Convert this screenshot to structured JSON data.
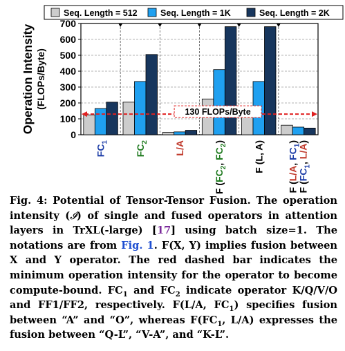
{
  "chart_data": {
    "type": "bar",
    "ylabel_line1": "Operation Intensity",
    "ylabel_line2": "(FLOPs/Byte)",
    "ylim": [
      0,
      700
    ],
    "yticks": [
      "0",
      "100",
      "200",
      "300",
      "400",
      "500",
      "600",
      "700"
    ],
    "grid": true,
    "legend_position": "top",
    "groups": [
      {
        "base": "FC",
        "sub": "1",
        "suffix": "",
        "color": "#1f3fa8"
      },
      {
        "base": "FC",
        "sub": "2",
        "suffix": "",
        "color": "#1f7a1f"
      },
      {
        "base": "L/A",
        "sub": "",
        "suffix": "",
        "color": "#c0392b"
      },
      {
        "base": "F (FC",
        "sub": "2",
        "suffix": ", FC",
        "sub2": "2",
        "tail": ")",
        "color": "#1f7a1f"
      },
      {
        "base": "F (L, A)",
        "sub": "",
        "suffix": "",
        "color": "#000000"
      },
      {
        "line1": "F (L/A, FC",
        "line1_sub": "1",
        "line1_tail": ")",
        "line2": "F (FC",
        "line2_sub": "1",
        "line2_tail": ", L/A)",
        "color": "#c0392b",
        "color2": "#1f3fa8"
      }
    ],
    "series": [
      {
        "name": "Seq. Length = 512",
        "color": "#cccccc",
        "values": [
          125,
          205,
          15,
          225,
          165,
          60
        ]
      },
      {
        "name": "Seq. Length = 1K",
        "color": "#1fa0f0",
        "values": [
          165,
          335,
          18,
          410,
          335,
          48
        ]
      },
      {
        "name": "Seq. Length = 2K",
        "color": "#17365d",
        "values": [
          205,
          505,
          28,
          680,
          680,
          42
        ]
      }
    ],
    "threshold": {
      "value": 130,
      "label": "130 FLOPs/Byte",
      "color": "#e02020"
    }
  },
  "caption": {
    "fig_label": "Fig. 4:",
    "title": "Potential of Tensor-Tensor Fusion.",
    "t1": "The operation intensity (",
    "t2": ") of single and fused operators in attention layers in TrXL(-large) [",
    "ref": "17",
    "t3": "] using batch size=1. The notations are from ",
    "link": "Fig. 1",
    "t4": ". F(X, Y) implies fusion between X and Y operator. The red dashed bar indicates the minimum operation intensity for the operator to become compute-bound. FC",
    "t5": " and FC",
    "t6": " indicate operator K/Q/V/O and FF1/FF2, respectively. F(L/A, FC",
    "t7": ") specifies fusion between “A” and “O”, whereas F(FC",
    "t8": ", L/A) expresses the fusion between “Q-L”, “V-A”, and “K-L”.",
    "sym": "𝓘",
    "s1": "1",
    "s2": "2"
  }
}
